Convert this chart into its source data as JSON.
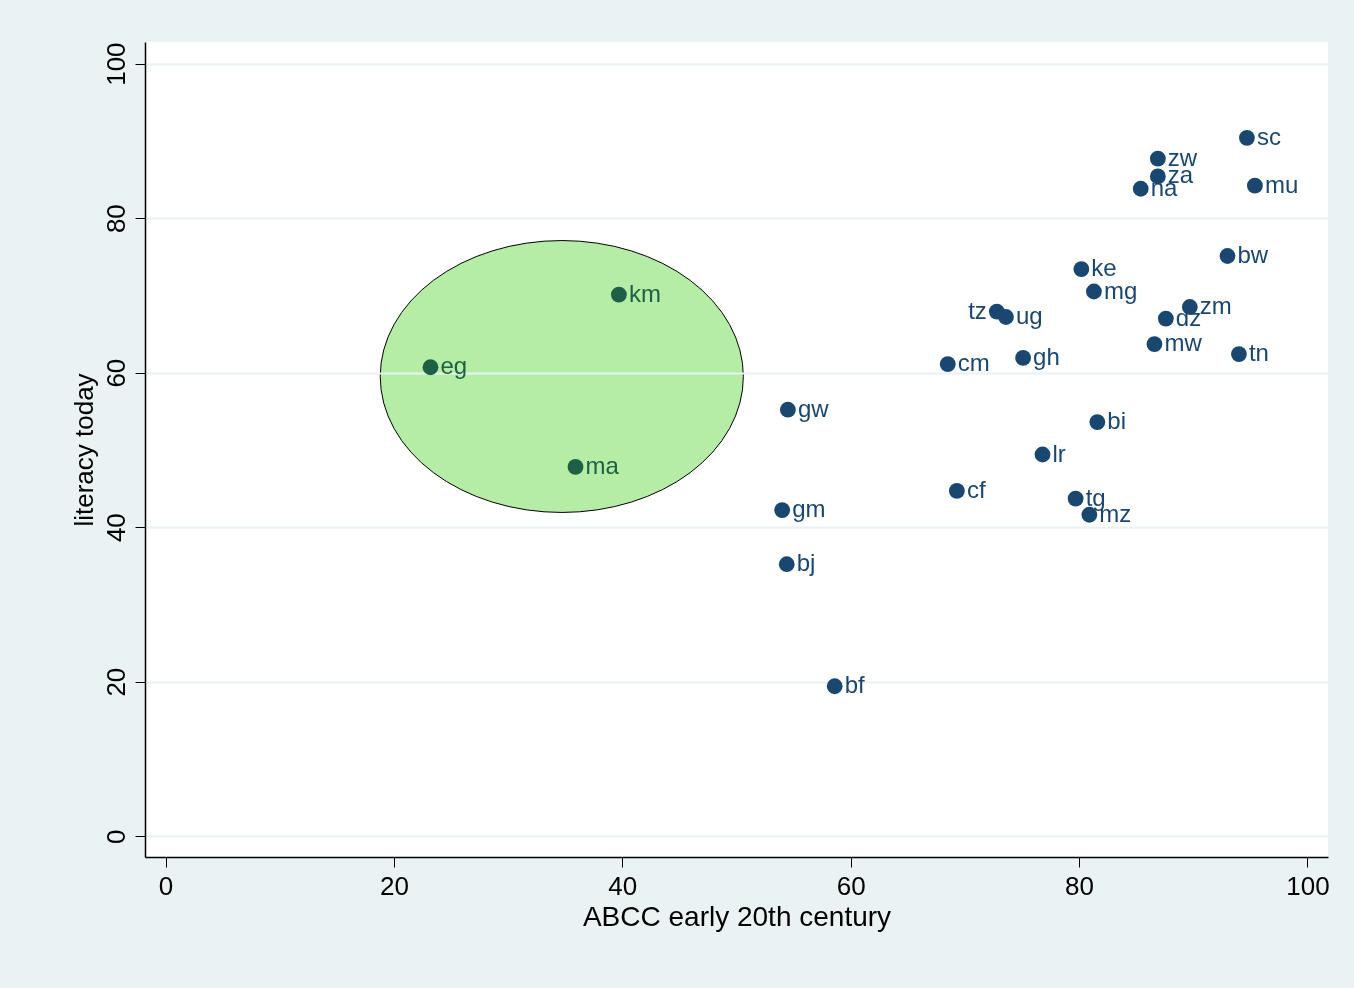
{
  "chart_data": {
    "type": "scatter",
    "xlabel": "ABCC early 20th century",
    "ylabel": "literacy today",
    "x": [
      23.2,
      39.7,
      35.9,
      54.5,
      54.0,
      54.4,
      58.6,
      68.5,
      69.3,
      72.8,
      73.6,
      75.1,
      76.8,
      80.2,
      81.3,
      81.6,
      79.7,
      80.9,
      85.4,
      86.9,
      86.9,
      94.7,
      95.4,
      93.0,
      89.7,
      87.6,
      86.6,
      94.0
    ],
    "values": [
      60.7,
      70.1,
      47.8,
      55.2,
      42.2,
      35.2,
      19.4,
      61.1,
      44.7,
      67.9,
      67.2,
      61.9,
      49.4,
      73.4,
      70.5,
      53.6,
      43.7,
      41.6,
      83.8,
      85.4,
      87.7,
      90.4,
      84.2,
      75.1,
      68.5,
      67.0,
      63.7,
      62.4
    ],
    "colors": [
      "#1e6046",
      "#1e6046",
      "#1e6046",
      "#1a476f",
      "#1a476f",
      "#1a476f",
      "#1a476f",
      "#1a476f",
      "#1a476f",
      "#1a476f",
      "#1a476f",
      "#1a476f",
      "#1a476f",
      "#1a476f",
      "#1a476f",
      "#1a476f",
      "#1a476f",
      "#1a476f",
      "#1a476f",
      "#1a476f",
      "#1a476f",
      "#1a476f",
      "#1a476f",
      "#1a476f",
      "#1a476f",
      "#1a476f",
      "#1a476f",
      "#1a476f"
    ],
    "annotations": [
      {
        "text": "eg",
        "x": 23.2,
        "y": 60.7
      },
      {
        "text": "km",
        "x": 39.7,
        "y": 70.1
      },
      {
        "text": "ma",
        "x": 35.9,
        "y": 47.8
      },
      {
        "text": "gw",
        "x": 54.5,
        "y": 55.2
      },
      {
        "text": "gm",
        "x": 54.0,
        "y": 42.2
      },
      {
        "text": "bj",
        "x": 54.4,
        "y": 35.2
      },
      {
        "text": "bf",
        "x": 58.6,
        "y": 19.4
      },
      {
        "text": "cm",
        "x": 68.5,
        "y": 61.1
      },
      {
        "text": "cf",
        "x": 69.3,
        "y": 44.7
      },
      {
        "text": "tz",
        "x": 72.8,
        "y": 67.9
      },
      {
        "text": "ug",
        "x": 73.6,
        "y": 67.2
      },
      {
        "text": "gh",
        "x": 75.1,
        "y": 61.9
      },
      {
        "text": "lr",
        "x": 76.8,
        "y": 49.4
      },
      {
        "text": "ke",
        "x": 80.2,
        "y": 73.4
      },
      {
        "text": "mg",
        "x": 81.3,
        "y": 70.5
      },
      {
        "text": "bi",
        "x": 81.6,
        "y": 53.6
      },
      {
        "text": "tg",
        "x": 79.7,
        "y": 43.7
      },
      {
        "text": "mz",
        "x": 80.9,
        "y": 41.6
      },
      {
        "text": "na",
        "x": 85.4,
        "y": 83.8
      },
      {
        "text": "za",
        "x": 86.9,
        "y": 85.4
      },
      {
        "text": "zw",
        "x": 86.9,
        "y": 87.7
      },
      {
        "text": "sc",
        "x": 94.7,
        "y": 90.4
      },
      {
        "text": "mu",
        "x": 95.4,
        "y": 84.2
      },
      {
        "text": "bw",
        "x": 93.0,
        "y": 75.1
      },
      {
        "text": "zm",
        "x": 89.7,
        "y": 68.5
      },
      {
        "text": "dz",
        "x": 87.6,
        "y": 67.0
      },
      {
        "text": "mw",
        "x": 86.6,
        "y": 63.7
      },
      {
        "text": "tn",
        "x": 94.0,
        "y": 62.4
      }
    ],
    "xlim": [
      -1.8,
      101.8
    ],
    "ylim": [
      -2.7,
      102.8
    ],
    "xticks": [
      0,
      20,
      40,
      60,
      80,
      100
    ],
    "yticks": [
      0,
      20,
      40,
      60,
      80,
      100
    ],
    "grid": "y",
    "marker": "circle"
  }
}
